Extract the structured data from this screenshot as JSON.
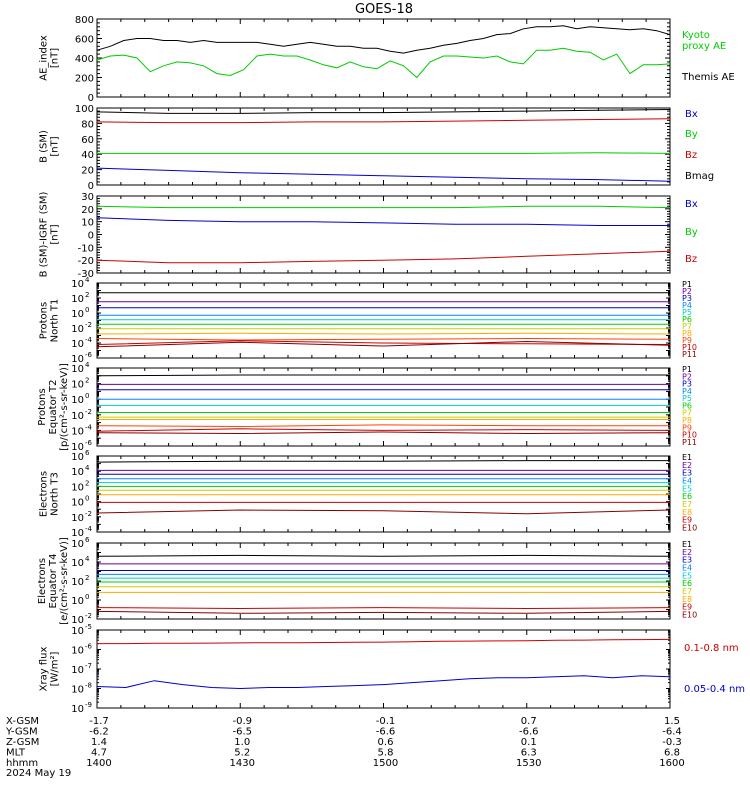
{
  "title": "GOES-18",
  "chart_data": [
    {
      "type": "line",
      "ylabel": [
        "AE_index",
        "[nT]"
      ],
      "ylim": [
        0,
        800
      ],
      "yticks": [
        0,
        200,
        400,
        600,
        800
      ],
      "series": [
        {
          "name": "Kyoto proxy AE",
          "color": "#00cc00",
          "values": [
            380,
            420,
            430,
            400,
            260,
            320,
            360,
            350,
            320,
            240,
            220,
            280,
            420,
            440,
            420,
            420,
            380,
            330,
            300,
            360,
            310,
            290,
            370,
            320,
            200,
            360,
            420,
            420,
            410,
            400,
            420,
            360,
            340,
            480,
            480,
            500,
            470,
            460,
            380,
            440,
            240,
            330,
            330,
            340
          ]
        },
        {
          "name": "Themis AE",
          "color": "#000000",
          "values": [
            480,
            520,
            580,
            600,
            600,
            580,
            580,
            560,
            580,
            560,
            560,
            560,
            560,
            540,
            520,
            540,
            560,
            540,
            520,
            520,
            500,
            500,
            470,
            450,
            480,
            500,
            530,
            550,
            580,
            600,
            640,
            650,
            700,
            720,
            720,
            730,
            700,
            720,
            710,
            700,
            690,
            700,
            680,
            640
          ]
        }
      ],
      "legend": [
        {
          "name": "Kyoto",
          "color": "#00cc00"
        },
        {
          "name": "proxy AE",
          "color": "#00cc00"
        },
        {
          "name": "Themis AE",
          "color": "#000000"
        }
      ]
    },
    {
      "type": "line",
      "ylabel": [
        "B (SM)",
        "[nT]"
      ],
      "ylim": [
        0,
        100
      ],
      "yticks": [
        0,
        20,
        40,
        60,
        80,
        100
      ],
      "series": [
        {
          "name": "Bx",
          "color": "#0000cc",
          "values": [
            22,
            19,
            16,
            14,
            12,
            10,
            8,
            7,
            5
          ]
        },
        {
          "name": "By",
          "color": "#00cc00",
          "values": [
            41,
            41,
            41,
            41,
            41,
            41,
            41,
            42,
            41
          ]
        },
        {
          "name": "Bz",
          "color": "#cc0000",
          "values": [
            82,
            81,
            81,
            82,
            82,
            83,
            84,
            85,
            86
          ]
        },
        {
          "name": "Bmag",
          "color": "#000000",
          "values": [
            95,
            93,
            93,
            94,
            94,
            95,
            96,
            97,
            98
          ]
        }
      ],
      "legend": [
        {
          "name": "Bx",
          "color": "#0000cc"
        },
        {
          "name": "By",
          "color": "#00cc00"
        },
        {
          "name": "Bz",
          "color": "#cc0000"
        },
        {
          "name": "Bmag",
          "color": "#000000"
        }
      ]
    },
    {
      "type": "line",
      "ylabel": [
        "B (SM)-IGRF (SM)",
        "[nT]"
      ],
      "ylim": [
        -30,
        30
      ],
      "yticks": [
        -30,
        -20,
        -10,
        0,
        10,
        20,
        30
      ],
      "series": [
        {
          "name": "Bx",
          "color": "#0000cc",
          "values": [
            13,
            11,
            10,
            10,
            9,
            8,
            8,
            7,
            7
          ]
        },
        {
          "name": "By",
          "color": "#00cc00",
          "values": [
            22,
            21,
            21,
            21,
            21,
            21,
            22,
            22,
            21
          ]
        },
        {
          "name": "Bz",
          "color": "#cc0000",
          "values": [
            -20,
            -22,
            -22,
            -21,
            -20,
            -19,
            -17,
            -15,
            -13
          ]
        }
      ],
      "legend": [
        {
          "name": "Bx",
          "color": "#0000cc"
        },
        {
          "name": "By",
          "color": "#00cc00"
        },
        {
          "name": "Bz",
          "color": "#cc0000"
        }
      ]
    },
    {
      "type": "line",
      "log": true,
      "ylabel": [
        "Protons",
        "North T1"
      ],
      "ylim": [
        -6,
        4
      ],
      "ytickexp": [
        -6,
        -4,
        -2,
        0,
        2,
        4
      ],
      "series": [
        {
          "name": "P1",
          "color": "#000000",
          "values": [
            2.7,
            2.7,
            2.7,
            2.7,
            2.7
          ]
        },
        {
          "name": "P2",
          "color": "#6a00a0",
          "values": [
            1.5,
            1.5,
            1.5,
            1.5,
            1.5
          ]
        },
        {
          "name": "P3",
          "color": "#0000cc",
          "values": [
            0.7,
            0.7,
            0.7,
            0.7,
            0.7
          ]
        },
        {
          "name": "P4",
          "color": "#0088ff",
          "values": [
            -0.3,
            -0.3,
            -0.3,
            -0.3,
            -0.3
          ]
        },
        {
          "name": "P5",
          "color": "#00cccc",
          "values": [
            -0.9,
            -0.9,
            -0.9,
            -0.9,
            -0.9
          ]
        },
        {
          "name": "P6",
          "color": "#00cc00",
          "values": [
            -1.5,
            -1.5,
            -1.5,
            -1.5,
            -1.5
          ]
        },
        {
          "name": "P7",
          "color": "#cccc00",
          "values": [
            -2.1,
            -2.1,
            -2.1,
            -2.1,
            -2.1
          ]
        },
        {
          "name": "P8",
          "color": "#ffaa00",
          "values": [
            -2.8,
            -2.7,
            -2.8,
            -2.7,
            -2.8
          ]
        },
        {
          "name": "P9",
          "color": "#ff4400",
          "values": [
            -3.4,
            -3.6,
            -3.5,
            -3.4,
            -3.5
          ]
        },
        {
          "name": "P10",
          "color": "#cc0000",
          "values": [
            -4.2,
            -3.7,
            -4.0,
            -4.1,
            -4.2
          ]
        },
        {
          "name": "P11",
          "color": "#880000",
          "values": [
            -4.5,
            -3.9,
            -4.4,
            -3.8,
            -4.3
          ]
        }
      ]
    },
    {
      "type": "line",
      "log": true,
      "ylabel": [
        "Protons",
        "Equator T2",
        "[p/(cm²-s-sr-keV)]"
      ],
      "ylim": [
        -6,
        4
      ],
      "ytickexp": [
        -6,
        -4,
        -2,
        0,
        2,
        4
      ],
      "series": [
        {
          "name": "P1",
          "color": "#000000",
          "values": [
            3.0,
            3.1,
            3.1,
            3.1,
            3.1
          ]
        },
        {
          "name": "P2",
          "color": "#6a00a0",
          "values": [
            1.9,
            1.9,
            1.9,
            1.9,
            1.9
          ]
        },
        {
          "name": "P3",
          "color": "#0000cc",
          "values": [
            1.2,
            1.2,
            1.2,
            1.2,
            1.2
          ]
        },
        {
          "name": "P4",
          "color": "#0088ff",
          "values": [
            0.0,
            0.0,
            0.0,
            0.0,
            0.0
          ]
        },
        {
          "name": "P5",
          "color": "#00cccc",
          "values": [
            -0.8,
            -0.8,
            -0.8,
            -0.8,
            -0.8
          ]
        },
        {
          "name": "P6",
          "color": "#00cc00",
          "values": [
            -1.7,
            -1.7,
            -1.7,
            -1.7,
            -1.7
          ]
        },
        {
          "name": "P7",
          "color": "#cccc00",
          "values": [
            -2.3,
            -2.3,
            -2.3,
            -2.3,
            -2.3
          ]
        },
        {
          "name": "P8",
          "color": "#ffaa00",
          "values": [
            -2.6,
            -2.6,
            -2.6,
            -2.6,
            -2.6
          ]
        },
        {
          "name": "P9",
          "color": "#ff4400",
          "values": [
            -3.4,
            -3.5,
            -3.3,
            -3.4,
            -3.4
          ]
        },
        {
          "name": "P10",
          "color": "#cc0000",
          "values": [
            -4.1,
            -3.8,
            -4.0,
            -3.9,
            -4.0
          ]
        },
        {
          "name": "P11",
          "color": "#880000",
          "values": [
            -4.3,
            -4.4,
            -4.2,
            -4.4,
            -4.3
          ]
        }
      ]
    },
    {
      "type": "line",
      "log": true,
      "ylabel": [
        "Electrons",
        "North T3"
      ],
      "ylim": [
        -4,
        6
      ],
      "ytickexp": [
        -4,
        -2,
        0,
        2,
        4,
        6
      ],
      "series": [
        {
          "name": "E1",
          "color": "#000000",
          "values": [
            5.2,
            5.3,
            5.3,
            5.4,
            5.4
          ]
        },
        {
          "name": "E2",
          "color": "#6a00a0",
          "values": [
            4.1,
            4.1,
            4.1,
            4.1,
            4.1
          ]
        },
        {
          "name": "E3",
          "color": "#0000cc",
          "values": [
            3.6,
            3.6,
            3.6,
            3.6,
            3.6
          ]
        },
        {
          "name": "E4",
          "color": "#0088ff",
          "values": [
            3.0,
            3.0,
            3.0,
            3.0,
            3.0
          ]
        },
        {
          "name": "E5",
          "color": "#00cccc",
          "values": [
            2.5,
            2.5,
            2.5,
            2.5,
            2.5
          ]
        },
        {
          "name": "E6",
          "color": "#00cc00",
          "values": [
            2.0,
            2.0,
            2.0,
            2.0,
            2.0
          ]
        },
        {
          "name": "E7",
          "color": "#cccc00",
          "values": [
            1.5,
            1.5,
            1.5,
            1.5,
            1.5
          ]
        },
        {
          "name": "E8",
          "color": "#ffaa00",
          "values": [
            0.9,
            0.9,
            0.9,
            0.9,
            0.9
          ]
        },
        {
          "name": "E9",
          "color": "#cc0000",
          "values": [
            -0.1,
            -0.1,
            -0.1,
            -0.1,
            -0.1
          ]
        },
        {
          "name": "E10",
          "color": "#880000",
          "values": [
            -1.5,
            -1.1,
            -1.2,
            -1.6,
            -1.1
          ]
        }
      ]
    },
    {
      "type": "line",
      "log": true,
      "ylabel": [
        "Electrons",
        "Equator T4",
        "[e/(cm²-s-sr-keV)]"
      ],
      "ylim": [
        -2,
        6
      ],
      "ytickexp": [
        -2,
        0,
        2,
        4,
        6
      ],
      "series": [
        {
          "name": "E1",
          "color": "#000000",
          "values": [
            4.6,
            4.7,
            4.6,
            4.7,
            4.6
          ]
        },
        {
          "name": "E2",
          "color": "#6a00a0",
          "values": [
            3.8,
            3.8,
            3.8,
            3.8,
            3.8
          ]
        },
        {
          "name": "E3",
          "color": "#0000cc",
          "values": [
            3.1,
            3.1,
            3.1,
            3.1,
            3.1
          ]
        },
        {
          "name": "E4",
          "color": "#0088ff",
          "values": [
            2.7,
            2.7,
            2.7,
            2.7,
            2.7
          ]
        },
        {
          "name": "E5",
          "color": "#00cccc",
          "values": [
            2.3,
            2.3,
            2.3,
            2.3,
            2.3
          ]
        },
        {
          "name": "E6",
          "color": "#00cc00",
          "values": [
            1.9,
            1.9,
            1.9,
            1.9,
            1.9
          ]
        },
        {
          "name": "E7",
          "color": "#cccc00",
          "values": [
            1.4,
            1.4,
            1.4,
            1.4,
            1.4
          ]
        },
        {
          "name": "E8",
          "color": "#ffaa00",
          "values": [
            0.8,
            0.8,
            0.8,
            0.8,
            0.8
          ]
        },
        {
          "name": "E9",
          "color": "#cc0000",
          "values": [
            -0.8,
            -0.9,
            -0.8,
            -0.9,
            -0.8
          ]
        },
        {
          "name": "E10",
          "color": "#880000",
          "values": [
            -1.2,
            -1.4,
            -1.3,
            -1.4,
            -1.2
          ]
        }
      ]
    },
    {
      "type": "line",
      "log": true,
      "ylabel": [
        "Xray flux",
        "[W/m²]"
      ],
      "ylim": [
        -9,
        -5
      ],
      "ytickexp": [
        -9,
        -8,
        -7,
        -6,
        -5
      ],
      "series": [
        {
          "name": "0.1-0.8 nm",
          "color": "#cc0000",
          "values": [
            -5.7,
            -5.7,
            -5.68,
            -5.68,
            -5.67,
            -5.66,
            -5.65,
            -5.65,
            -5.64,
            -5.63,
            -5.62,
            -5.6,
            -5.58,
            -5.57,
            -5.56,
            -5.55,
            -5.53,
            -5.52,
            -5.5,
            -5.49,
            -5.48
          ]
        },
        {
          "name": "0.05-0.4 nm",
          "color": "#0000cc",
          "values": [
            -7.9,
            -7.95,
            -7.6,
            -7.8,
            -7.95,
            -8.0,
            -7.95,
            -7.95,
            -7.9,
            -7.85,
            -7.8,
            -7.7,
            -7.6,
            -7.5,
            -7.45,
            -7.45,
            -7.4,
            -7.35,
            -7.45,
            -7.35,
            -7.4
          ]
        }
      ],
      "legend": [
        {
          "name": "0.1-0.8 nm",
          "color": "#cc0000"
        },
        {
          "name": "0.05-0.4 nm",
          "color": "#0000cc"
        }
      ]
    }
  ],
  "xaxis": {
    "rows": [
      {
        "label": "X-GSM",
        "values": [
          "-1.7",
          "-0.9",
          "-0.1",
          "0.7",
          "1.5"
        ]
      },
      {
        "label": "Y-GSM",
        "values": [
          "-6.2",
          "-6.5",
          "-6.6",
          "-6.6",
          "-6.4"
        ]
      },
      {
        "label": "Z-GSM",
        "values": [
          "1.4",
          "1.0",
          "0.6",
          "0.1",
          "-0.3"
        ]
      },
      {
        "label": "MLT",
        "values": [
          "4.7",
          "5.2",
          "5.8",
          "6.3",
          "6.8"
        ]
      },
      {
        "label": "hhmm",
        "values": [
          "1400",
          "1430",
          "1500",
          "1530",
          "1600"
        ]
      }
    ],
    "date": "2024 May 19"
  }
}
